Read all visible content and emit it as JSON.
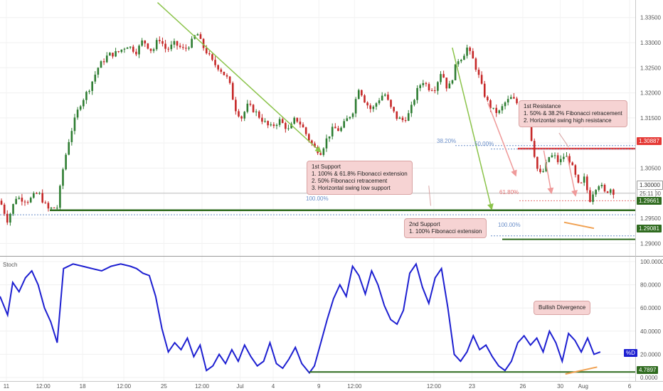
{
  "colors": {
    "candle_up": "#2e7d32",
    "candle_down": "#c62828",
    "stoch_line": "#1d1fd1",
    "support_line": "#2f6b1f",
    "resistance_line": "#e53935",
    "arrow_green": "#8bc34a",
    "arrow_red": "#ef9a9a",
    "divergence_orange": "#f0a050",
    "fib_blue": "#6b8fc9"
  },
  "annotations": {
    "resistance_box": {
      "title": "1st Resistance",
      "lines": [
        "1. 50% & 38.2% Fibonacci retracement",
        "2. Horizontal swing high resistance"
      ]
    },
    "support1_box": {
      "title": "1st Support",
      "lines": [
        "1. 100% & 61.8% Fibonacci extension",
        "2. 50% Fibonacci retracement",
        "3. Horizontal swing low support"
      ]
    },
    "support2_box": {
      "title": "2nd Support",
      "lines": [
        "1. 100% Fibonacci extension"
      ]
    },
    "divergence_box": {
      "title": "Bullish Divergence"
    }
  },
  "fib_labels": {
    "r382": "38.20%",
    "r50": "50.00%",
    "e618": "61.80%",
    "e100a": "100.00%",
    "e100b": "100.00%"
  },
  "price_tags": {
    "resistance": "1.30887",
    "current": "1.30000",
    "countdown": "25:11",
    "support1": "1.29661",
    "support2": "1.29081"
  },
  "stoch_tags": {
    "label": "Stoch",
    "pct_d": "%D",
    "support": "4.7897"
  },
  "chart_data": [
    {
      "type": "candlestick",
      "title": "",
      "y_ticks": [
        "1.33500",
        "1.33000",
        "1.32500",
        "1.32000",
        "1.31500",
        "1.31000",
        "1.30500",
        "1.30000",
        "1.29500",
        "1.29000"
      ],
      "ylim": [
        1.2875,
        1.3385
      ],
      "x_ticks": [
        {
          "label": "11",
          "t": 0.01
        },
        {
          "label": "12:00",
          "t": 0.068
        },
        {
          "label": "18",
          "t": 0.13
        },
        {
          "label": "12:00",
          "t": 0.195
        },
        {
          "label": "25",
          "t": 0.258
        },
        {
          "label": "12:00",
          "t": 0.318
        },
        {
          "label": "Jul",
          "t": 0.378
        },
        {
          "label": "4",
          "t": 0.43
        },
        {
          "label": "9",
          "t": 0.502
        },
        {
          "label": "12:00",
          "t": 0.558
        },
        {
          "label": "12:00",
          "t": 0.683
        },
        {
          "label": "23",
          "t": 0.743
        },
        {
          "label": "26",
          "t": 0.823
        },
        {
          "label": "30",
          "t": 0.882
        },
        {
          "label": "Aug",
          "t": 0.918
        },
        {
          "label": "6",
          "t": 0.991
        }
      ],
      "price_path": [
        [
          0.0,
          1.2985
        ],
        [
          0.012,
          1.2945
        ],
        [
          0.025,
          1.2992
        ],
        [
          0.045,
          1.2985
        ],
        [
          0.06,
          1.3002
        ],
        [
          0.075,
          1.2968
        ],
        [
          0.09,
          1.2972
        ],
        [
          0.1,
          1.3055
        ],
        [
          0.11,
          1.3115
        ],
        [
          0.125,
          1.3175
        ],
        [
          0.14,
          1.3208
        ],
        [
          0.155,
          1.3252
        ],
        [
          0.17,
          1.3275
        ],
        [
          0.185,
          1.328
        ],
        [
          0.2,
          1.3295
        ],
        [
          0.215,
          1.3282
        ],
        [
          0.225,
          1.3305
        ],
        [
          0.24,
          1.3282
        ],
        [
          0.25,
          1.331
        ],
        [
          0.262,
          1.3285
        ],
        [
          0.275,
          1.3298
        ],
        [
          0.29,
          1.3285
        ],
        [
          0.302,
          1.3302
        ],
        [
          0.31,
          1.332
        ],
        [
          0.318,
          1.3295
        ],
        [
          0.326,
          1.328
        ],
        [
          0.335,
          1.326
        ],
        [
          0.345,
          1.325
        ],
        [
          0.36,
          1.3225
        ],
        [
          0.37,
          1.317
        ],
        [
          0.38,
          1.315
        ],
        [
          0.39,
          1.3175
        ],
        [
          0.4,
          1.3165
        ],
        [
          0.41,
          1.315
        ],
        [
          0.425,
          1.313
        ],
        [
          0.44,
          1.3145
        ],
        [
          0.455,
          1.3125
        ],
        [
          0.465,
          1.315
        ],
        [
          0.475,
          1.3135
        ],
        [
          0.485,
          1.311
        ],
        [
          0.495,
          1.309
        ],
        [
          0.505,
          1.3082
        ],
        [
          0.515,
          1.311
        ],
        [
          0.525,
          1.313
        ],
        [
          0.535,
          1.3125
        ],
        [
          0.545,
          1.3145
        ],
        [
          0.555,
          1.3162
        ],
        [
          0.565,
          1.3212
        ],
        [
          0.575,
          1.3182
        ],
        [
          0.585,
          1.3165
        ],
        [
          0.595,
          1.3185
        ],
        [
          0.605,
          1.32
        ],
        [
          0.615,
          1.317
        ],
        [
          0.625,
          1.315
        ],
        [
          0.635,
          1.3145
        ],
        [
          0.645,
          1.316
        ],
        [
          0.655,
          1.32
        ],
        [
          0.665,
          1.3225
        ],
        [
          0.675,
          1.321
        ],
        [
          0.685,
          1.321
        ],
        [
          0.695,
          1.3245
        ],
        [
          0.705,
          1.3205
        ],
        [
          0.712,
          1.323
        ],
        [
          0.72,
          1.3265
        ],
        [
          0.728,
          1.3272
        ],
        [
          0.735,
          1.329
        ],
        [
          0.745,
          1.3265
        ],
        [
          0.752,
          1.324
        ],
        [
          0.76,
          1.3205
        ],
        [
          0.768,
          1.318
        ],
        [
          0.776,
          1.3165
        ],
        [
          0.785,
          1.316
        ],
        [
          0.795,
          1.318
        ],
        [
          0.805,
          1.319
        ],
        [
          0.815,
          1.3178
        ],
        [
          0.825,
          1.3172
        ],
        [
          0.832,
          1.314
        ],
        [
          0.84,
          1.3085
        ],
        [
          0.848,
          1.3035
        ],
        [
          0.856,
          1.3045
        ],
        [
          0.864,
          1.3072
        ],
        [
          0.872,
          1.3075
        ],
        [
          0.88,
          1.306
        ],
        [
          0.888,
          1.3075
        ],
        [
          0.896,
          1.3068
        ],
        [
          0.904,
          1.304
        ],
        [
          0.912,
          1.301
        ],
        [
          0.92,
          1.303
        ],
        [
          0.928,
          1.2985
        ],
        [
          0.936,
          1.301
        ],
        [
          0.944,
          1.302
        ],
        [
          0.952,
          1.3
        ],
        [
          0.96,
          1.301
        ],
        [
          0.968,
          1.3
        ]
      ]
    },
    {
      "type": "line",
      "title": "Stoch",
      "y_ticks": [
        "100.0000",
        "80.0000",
        "60.0000",
        "40.0000",
        "20.0000",
        "0.0000"
      ],
      "ylim": [
        0,
        100
      ],
      "series": [
        {
          "values_path": [
            [
              0.0,
              70
            ],
            [
              0.012,
              54
            ],
            [
              0.02,
              82
            ],
            [
              0.03,
              74
            ],
            [
              0.04,
              86
            ],
            [
              0.05,
              92
            ],
            [
              0.06,
              80
            ],
            [
              0.07,
              60
            ],
            [
              0.08,
              48
            ],
            [
              0.09,
              30
            ],
            [
              0.1,
              94
            ],
            [
              0.115,
              98
            ],
            [
              0.13,
              96
            ],
            [
              0.145,
              94
            ],
            [
              0.16,
              92
            ],
            [
              0.175,
              96
            ],
            [
              0.19,
              98
            ],
            [
              0.205,
              96
            ],
            [
              0.215,
              94
            ],
            [
              0.225,
              90
            ],
            [
              0.235,
              88
            ],
            [
              0.245,
              70
            ],
            [
              0.255,
              42
            ],
            [
              0.265,
              22
            ],
            [
              0.275,
              30
            ],
            [
              0.285,
              24
            ],
            [
              0.295,
              34
            ],
            [
              0.305,
              18
            ],
            [
              0.315,
              28
            ],
            [
              0.325,
              6
            ],
            [
              0.335,
              10
            ],
            [
              0.345,
              20
            ],
            [
              0.355,
              12
            ],
            [
              0.365,
              24
            ],
            [
              0.375,
              14
            ],
            [
              0.385,
              28
            ],
            [
              0.395,
              18
            ],
            [
              0.405,
              10
            ],
            [
              0.415,
              14
            ],
            [
              0.425,
              30
            ],
            [
              0.435,
              12
            ],
            [
              0.445,
              8
            ],
            [
              0.455,
              16
            ],
            [
              0.465,
              26
            ],
            [
              0.475,
              12
            ],
            [
              0.487,
              4
            ],
            [
              0.495,
              10
            ],
            [
              0.505,
              30
            ],
            [
              0.515,
              50
            ],
            [
              0.525,
              68
            ],
            [
              0.535,
              80
            ],
            [
              0.545,
              70
            ],
            [
              0.555,
              96
            ],
            [
              0.565,
              88
            ],
            [
              0.575,
              72
            ],
            [
              0.585,
              92
            ],
            [
              0.595,
              80
            ],
            [
              0.605,
              62
            ],
            [
              0.615,
              50
            ],
            [
              0.625,
              46
            ],
            [
              0.635,
              58
            ],
            [
              0.645,
              90
            ],
            [
              0.655,
              98
            ],
            [
              0.665,
              78
            ],
            [
              0.675,
              64
            ],
            [
              0.685,
              86
            ],
            [
              0.695,
              94
            ],
            [
              0.705,
              60
            ],
            [
              0.715,
              20
            ],
            [
              0.725,
              14
            ],
            [
              0.735,
              22
            ],
            [
              0.745,
              36
            ],
            [
              0.755,
              24
            ],
            [
              0.765,
              28
            ],
            [
              0.775,
              18
            ],
            [
              0.785,
              10
            ],
            [
              0.795,
              6
            ],
            [
              0.805,
              14
            ],
            [
              0.815,
              30
            ],
            [
              0.825,
              36
            ],
            [
              0.835,
              28
            ],
            [
              0.845,
              34
            ],
            [
              0.855,
              22
            ],
            [
              0.865,
              40
            ],
            [
              0.875,
              30
            ],
            [
              0.885,
              14
            ],
            [
              0.895,
              38
            ],
            [
              0.905,
              32
            ],
            [
              0.915,
              22
            ],
            [
              0.925,
              34
            ],
            [
              0.935,
              20
            ],
            [
              0.945,
              22
            ]
          ]
        }
      ]
    }
  ]
}
